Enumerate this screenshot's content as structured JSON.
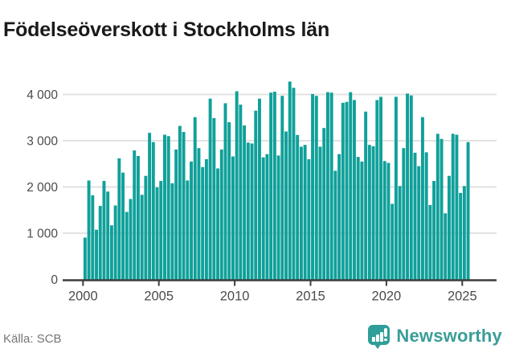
{
  "title": "Födelseöverskott i Stockholms län",
  "footer": {
    "source_label": "Källa: SCB"
  },
  "brand": {
    "name": "Newsworthy"
  },
  "colors": {
    "bar": "#10a09a",
    "grid": "#e2e2e2",
    "axis": "#3c3c3c",
    "tick_label": "#4c4c4c",
    "title": "#1a1a1a",
    "source_text": "#767676",
    "brand_teal": "#2f9e98",
    "background": "#ffffff"
  },
  "chart_data": {
    "type": "bar",
    "title": "Födelseöverskott i Stockholms län",
    "xlabel": "",
    "ylabel": "",
    "ylim": [
      0,
      4400
    ],
    "grid": true,
    "legend": "none",
    "frequency": "quarterly",
    "start_year": 2000,
    "start_quarter": 1,
    "end_year": 2025,
    "end_quarter": 2,
    "x_ticks": [
      2000,
      2005,
      2010,
      2015,
      2020,
      2025
    ],
    "x_tick_labels": [
      "2000",
      "2005",
      "2010",
      "2015",
      "2020",
      "2025"
    ],
    "y_ticks": [
      0,
      1000,
      2000,
      3000,
      4000
    ],
    "y_tick_labels": [
      "0",
      "1 000",
      "2 000",
      "3 000",
      "4 000"
    ],
    "values": [
      905,
      2140,
      1820,
      1075,
      1590,
      2130,
      1900,
      1170,
      1600,
      2620,
      2310,
      1460,
      1740,
      2790,
      2670,
      1830,
      2240,
      3170,
      2970,
      1990,
      2130,
      3130,
      3100,
      2080,
      2810,
      3320,
      3190,
      2140,
      2550,
      3510,
      2840,
      2430,
      2600,
      3910,
      3490,
      2400,
      2810,
      3810,
      3400,
      2660,
      4070,
      3780,
      3330,
      2960,
      2940,
      3650,
      3910,
      2640,
      2710,
      4040,
      4060,
      2680,
      3970,
      3200,
      4280,
      4145,
      3125,
      2870,
      2910,
      2600,
      4010,
      3970,
      2870,
      3275,
      4050,
      4040,
      2350,
      2710,
      3820,
      3840,
      4050,
      3880,
      2650,
      2550,
      3630,
      2910,
      2880,
      3880,
      3950,
      2560,
      2520,
      1635,
      3950,
      2020,
      2840,
      4020,
      3980,
      2740,
      2450,
      3510,
      2750,
      1610,
      2130,
      3150,
      3040,
      1430,
      2240,
      3150,
      3130,
      1870,
      2020,
      2970
    ]
  }
}
